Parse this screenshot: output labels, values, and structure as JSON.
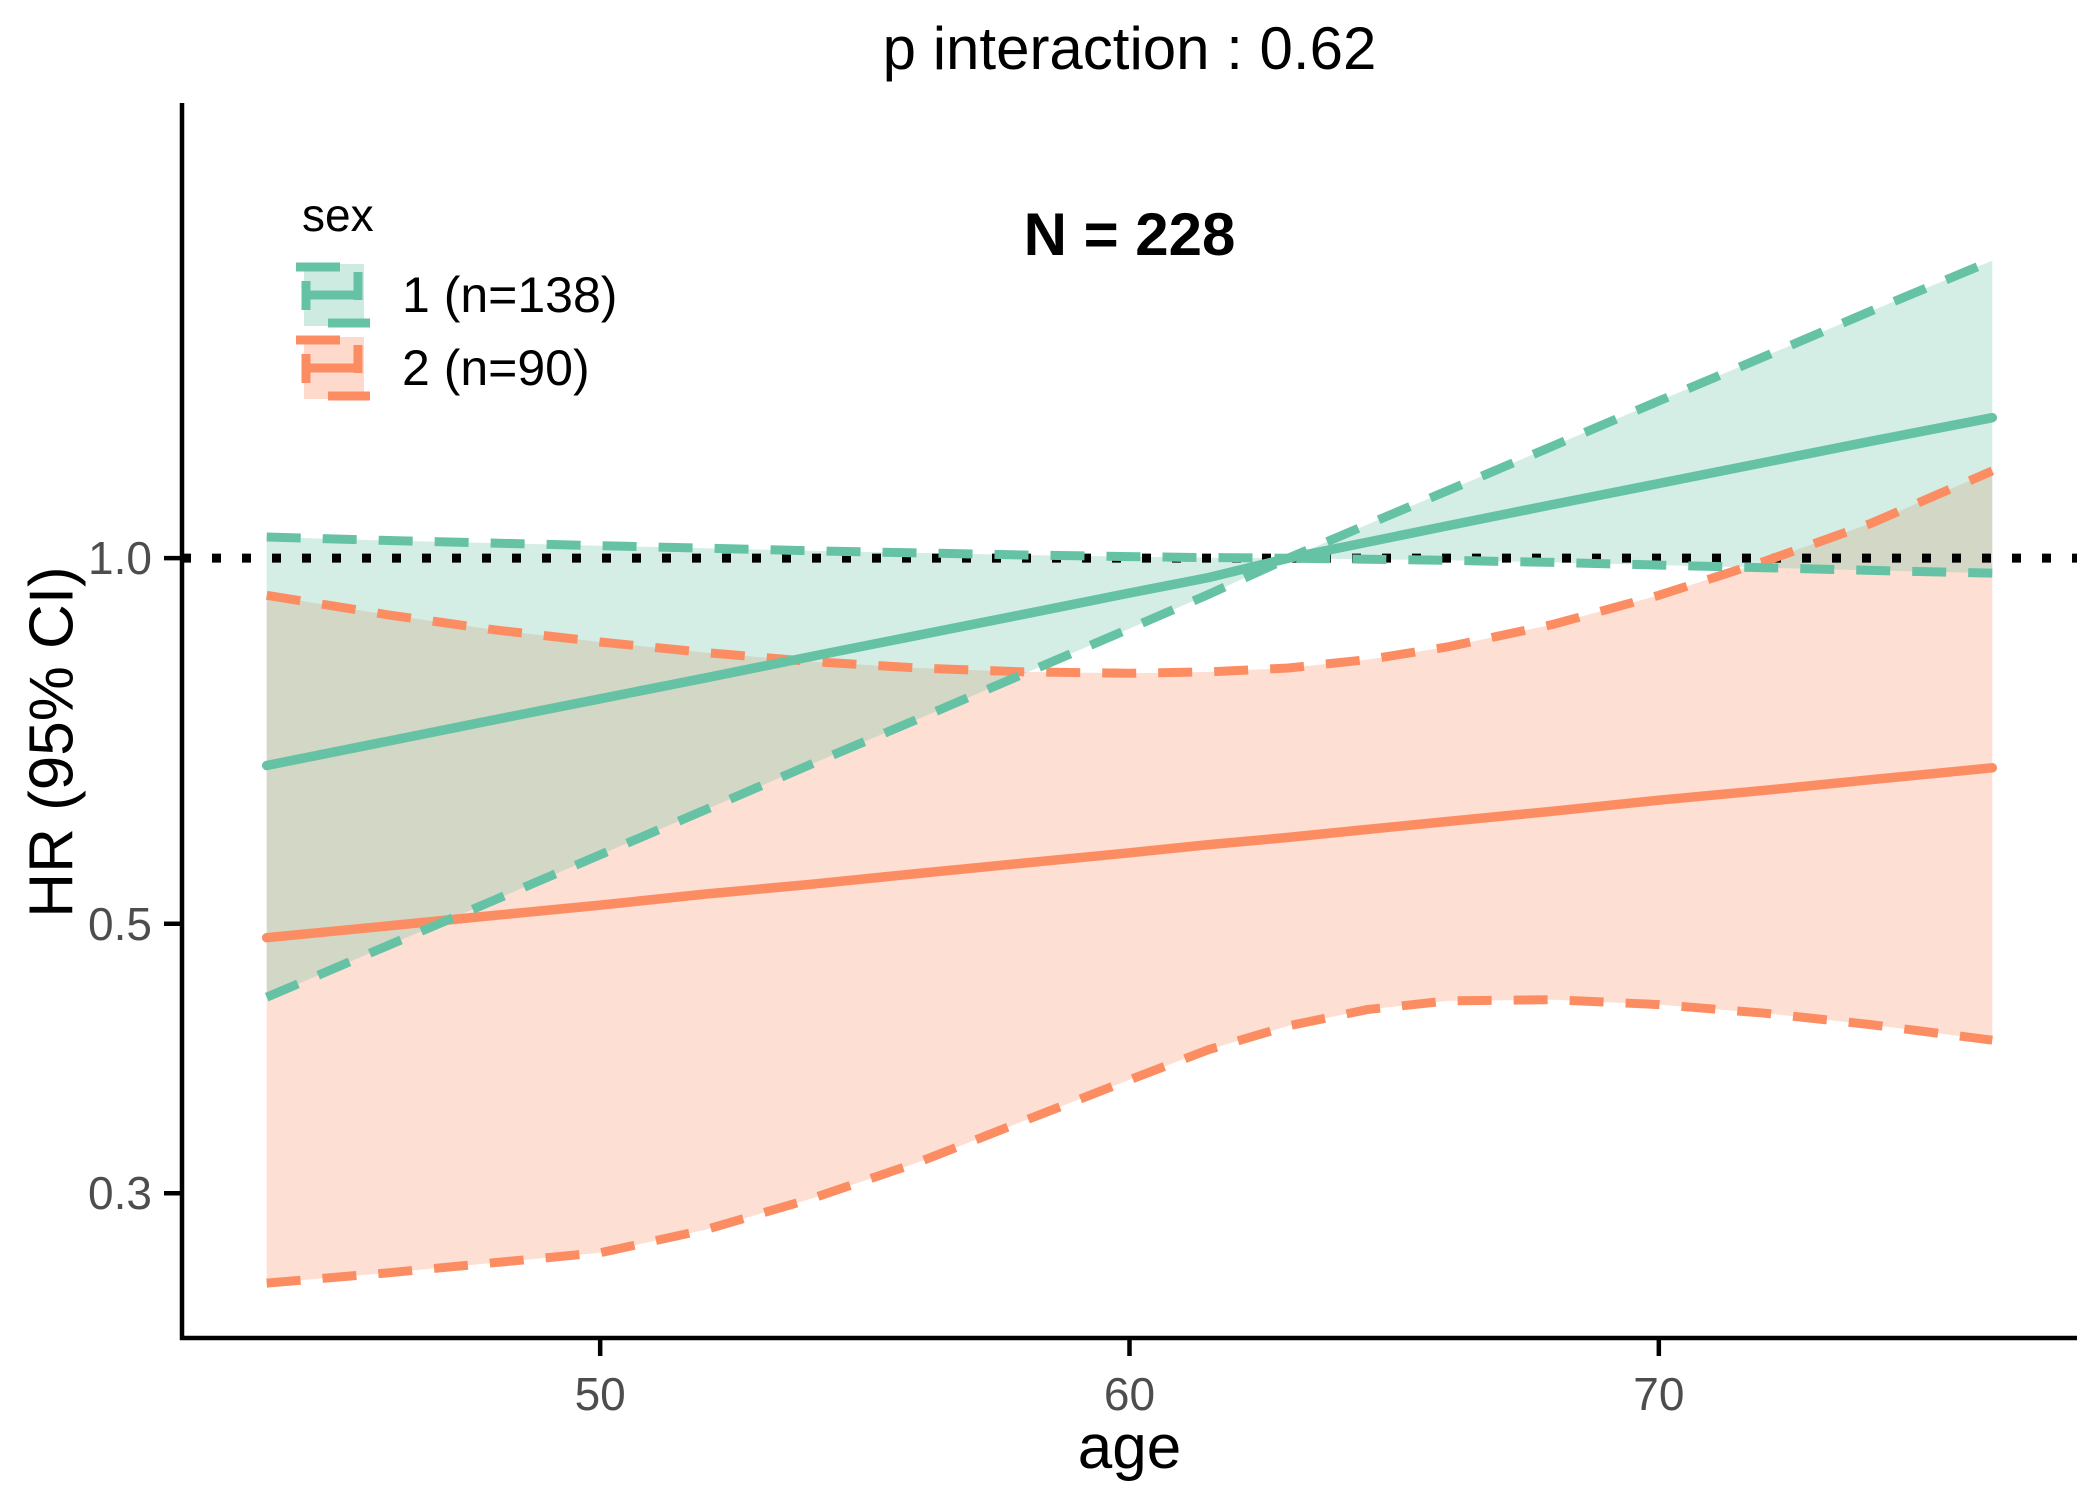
{
  "title": "p interaction : 0.62",
  "p_interaction": 0.62,
  "n_total": 228,
  "chart_data": {
    "type": "line",
    "title": "p interaction : 0.62",
    "annotation": "N = 228",
    "grid": "off",
    "theme": "classic",
    "reference_line": {
      "y": 1.0,
      "style": "dotted",
      "color": "#000000"
    },
    "x_axis": {
      "label": "age",
      "ticks": [
        50,
        60,
        70
      ],
      "range": [
        42.1,
        77.9
      ]
    },
    "y_axis": {
      "label": "HR (95% CI)",
      "scale": "log",
      "ticks": [
        {
          "v": 1.0,
          "label": "1.0"
        },
        {
          "v": 0.5,
          "label": "0.5"
        },
        {
          "v": 0.3,
          "label": "0.3"
        }
      ],
      "range": [
        0.228,
        2.37
      ]
    },
    "legend": {
      "title": "sex",
      "position": "inside-top-left",
      "items": [
        {
          "label": "1 (n=138)",
          "color": "#66C2A5"
        },
        {
          "label": "2 (n=90)",
          "color": "#FC8D62"
        }
      ]
    },
    "ages": [
      43.7,
      46,
      48,
      50,
      52,
      54,
      56,
      58,
      60,
      61.5,
      63,
      64.5,
      66,
      68,
      70,
      72,
      74,
      76.3
    ],
    "series": [
      {
        "name": "1 (n=138)",
        "n": 138,
        "color": "#66C2A5",
        "fill": "rgba(102,194,165,0.28)",
        "hr": [
          0.675,
          0.707,
          0.736,
          0.766,
          0.797,
          0.83,
          0.864,
          0.899,
          0.936,
          0.964,
          1.0,
          1.031,
          1.063,
          1.107,
          1.152,
          1.199,
          1.248,
          1.305
        ],
        "upper": [
          1.041,
          1.034,
          1.029,
          1.024,
          1.019,
          1.014,
          1.01,
          1.006,
          1.003,
          1.001,
          1.0,
          1.066,
          1.136,
          1.237,
          1.347,
          1.466,
          1.597,
          1.758
        ],
        "lower": [
          0.435,
          0.48,
          0.523,
          0.57,
          0.621,
          0.677,
          0.737,
          0.803,
          0.875,
          0.934,
          1.0,
          0.998,
          0.996,
          0.992,
          0.987,
          0.982,
          0.977,
          0.972
        ]
      },
      {
        "name": "2 (n=90)",
        "n": 90,
        "color": "#FC8D62",
        "fill": "rgba(252,141,98,0.28)",
        "hr": [
          0.487,
          0.498,
          0.508,
          0.518,
          0.529,
          0.539,
          0.55,
          0.561,
          0.572,
          0.581,
          0.589,
          0.598,
          0.607,
          0.619,
          0.632,
          0.644,
          0.657,
          0.672
        ],
        "upper": [
          0.932,
          0.898,
          0.873,
          0.853,
          0.836,
          0.822,
          0.812,
          0.806,
          0.804,
          0.806,
          0.812,
          0.825,
          0.845,
          0.882,
          0.932,
          0.994,
          1.068,
          1.18
        ],
        "lower": [
          0.253,
          0.258,
          0.263,
          0.268,
          0.28,
          0.297,
          0.318,
          0.344,
          0.372,
          0.394,
          0.412,
          0.425,
          0.432,
          0.433,
          0.429,
          0.422,
          0.413,
          0.401
        ]
      }
    ],
    "styles": {
      "tick_label_color": "#4d4d4d",
      "axis_color": "#000000",
      "line_width": 9.5,
      "ci_dash": "34 22",
      "dotted_dash": "9 21"
    }
  }
}
